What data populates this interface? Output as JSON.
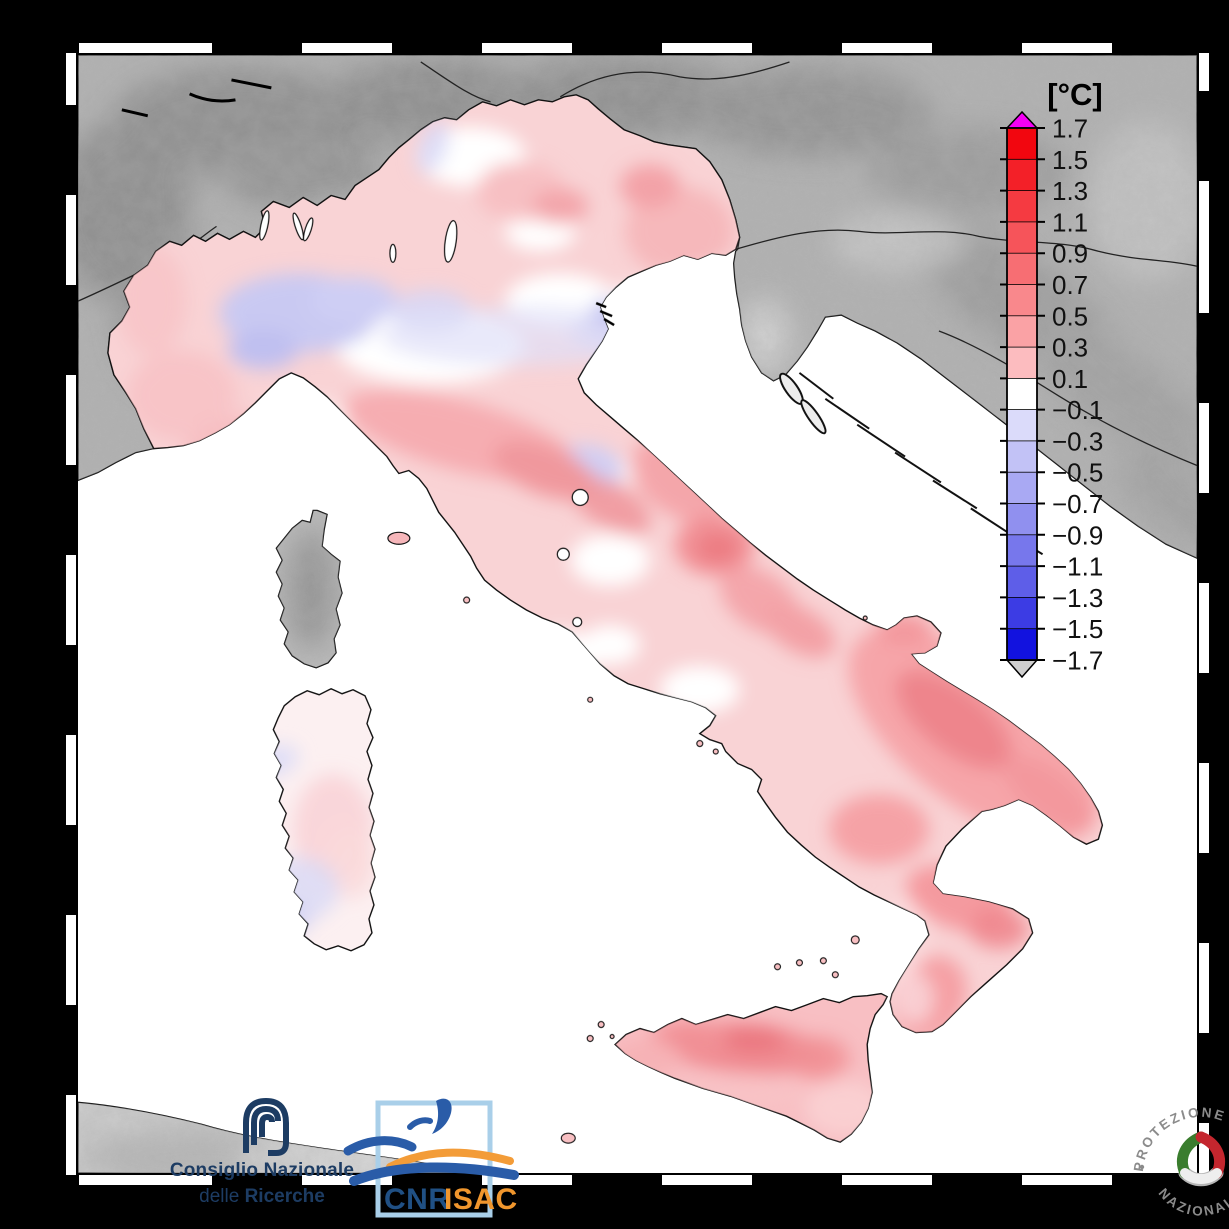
{
  "canvas": {
    "background": "#000000",
    "panel_background": "#ffffff"
  },
  "colorbar": {
    "title": "[°C]",
    "unit": "°C",
    "tick_labels": [
      "1.7",
      "1.5",
      "1.3",
      "1.1",
      "0.9",
      "0.7",
      "0.5",
      "0.3",
      "0.1",
      "−0.1",
      "−0.3",
      "−0.5",
      "−0.7",
      "−0.9",
      "−1.1",
      "−1.3",
      "−1.5",
      "−1.7"
    ],
    "segment_colors": [
      "#f2060f",
      "#f32028",
      "#f53a41",
      "#f6545a",
      "#f76e73",
      "#f9888c",
      "#faa2a5",
      "#fcbcbf",
      "#ffffff",
      "#dbdbfa",
      "#c2c2f6",
      "#a9a9f3",
      "#9090ef",
      "#7777ec",
      "#5e5ee8",
      "#3c3ce4",
      "#1212df"
    ],
    "over_range_color": "#f500f5",
    "under_range_color": "#cfcfcf"
  },
  "map": {
    "description": "Temperature anomaly map of Italy with shaded-relief terrain outside the analysis domain",
    "sea_color": "#ffffff",
    "terrain_color": "#b2b2b2",
    "anomaly_regions": [
      {
        "region": "Po Valley plain (Piedmont–Lombardy)",
        "anomaly_c": "−0.1 to −0.5"
      },
      {
        "region": "Alpine foothills, Veneto and Friuli",
        "anomaly_c": "+0.1 to +0.5"
      },
      {
        "region": "Emilia and northern Apennines",
        "anomaly_c": "+0.3 to +0.7"
      },
      {
        "region": "Abruzzo and central Adriatic",
        "anomaly_c": "+0.5 to +0.9"
      },
      {
        "region": "Puglia, Basilicata and Calabria",
        "anomaly_c": "+0.5 to +0.9"
      },
      {
        "region": "Sicily",
        "anomaly_c": "+0.5 to +0.9"
      },
      {
        "region": "Sardinia",
        "anomaly_c": "−0.3 to +0.3"
      }
    ]
  },
  "logos": {
    "cnr": {
      "line1": "Consiglio Nazionale",
      "line2_regular": "delle ",
      "line2_bold": "Ricerche",
      "color": "#1d3c63"
    },
    "cnr_isac": {
      "cnr": "CNR",
      "isac": "ISAC",
      "cnr_color": "#205084",
      "isac_color": "#f0962d",
      "frame_color": "#a9cfe9",
      "swoosh_blue": "#2a5ca8",
      "swoosh_orange": "#f39c38"
    },
    "protezione_civile": {
      "arc_top": "PROTEZIONE CIVILE",
      "arc_bottom": "NAZIONALE",
      "text_color": "#8b8b8b",
      "green": "#3a7d2e",
      "red": "#c4262e"
    }
  }
}
